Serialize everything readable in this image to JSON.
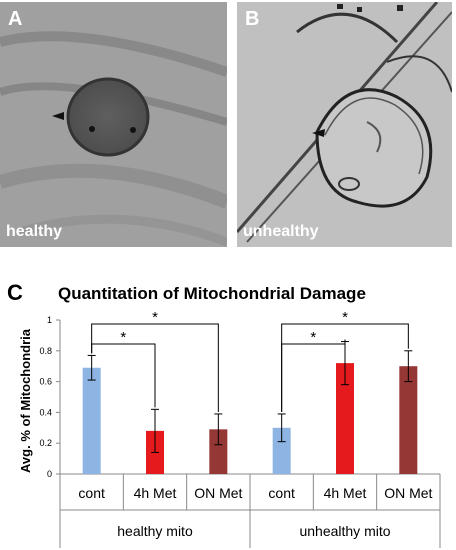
{
  "panels": [
    {
      "letter": "A",
      "caption": "healthy"
    },
    {
      "letter": "B",
      "caption": "unhealthy"
    }
  ],
  "chart_letter": "C",
  "chart_data": {
    "type": "bar",
    "title": "Quantitation of Mitochondrial Damage",
    "ylabel": "Avg. % of Mitochondria",
    "ylim": [
      0,
      1
    ],
    "yticks": [
      "0",
      "0.2",
      "0.4",
      "0.6",
      "0.8",
      "1"
    ],
    "groups": [
      "healthy mito",
      "unhealthy mito"
    ],
    "categories": [
      "cont",
      "4h Met",
      "ON Met",
      "cont",
      "4h Met",
      "ON Met"
    ],
    "values": [
      0.69,
      0.28,
      0.29,
      0.3,
      0.72,
      0.7
    ],
    "errors": [
      0.08,
      0.14,
      0.1,
      0.09,
      0.14,
      0.1
    ],
    "colors": [
      "#8db4e2",
      "#e41a1c",
      "#953735",
      "#8db4e2",
      "#e41a1c",
      "#953735"
    ],
    "significance": [
      {
        "from": 0,
        "to": 1,
        "label": "*"
      },
      {
        "from": 0,
        "to": 2,
        "label": "*"
      },
      {
        "from": 3,
        "to": 4,
        "label": "*"
      },
      {
        "from": 3,
        "to": 5,
        "label": "*"
      }
    ],
    "grid": false,
    "legend": "none"
  }
}
